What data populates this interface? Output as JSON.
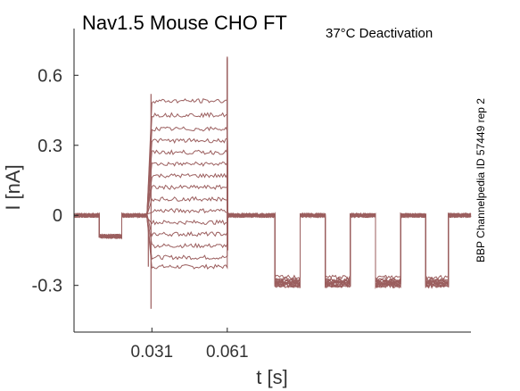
{
  "title": "Nav1.5  Mouse  CHO FT",
  "subtitle": "37°C  Deactivation",
  "side_note": "BBP Channelpedia ID 57449 rep 2",
  "chart_data": {
    "type": "line",
    "xlabel": "t [s]",
    "ylabel": "I [nA]",
    "x_ticks": [
      0.031,
      0.061
    ],
    "x_tick_labels": [
      "0.031",
      "0.061"
    ],
    "y_ticks": [
      -0.3,
      0,
      0.3,
      0.6
    ],
    "y_tick_labels": [
      "-0.3",
      "0",
      "0.3",
      "0.6"
    ],
    "xlim": [
      0.0,
      0.158
    ],
    "ylim": [
      -0.5,
      0.8
    ],
    "grid": false,
    "legend": "none",
    "trace_color": "#9b5e5e",
    "segments": [
      {
        "t_start": 0.0,
        "t_end": 0.01,
        "level": "baseline",
        "value": 0.0
      },
      {
        "t_start": 0.01,
        "t_end": 0.019,
        "level": "prepulse",
        "value": -0.09
      },
      {
        "t_start": 0.019,
        "t_end": 0.029,
        "level": "baseline",
        "value": 0.0
      },
      {
        "t_start": 0.031,
        "t_end": 0.061,
        "level": "test_step",
        "values_by_sweep": [
          -0.22,
          -0.18,
          -0.13,
          -0.08,
          -0.03,
          0.02,
          0.07,
          0.12,
          0.17,
          0.22,
          0.27,
          0.32,
          0.37,
          0.43,
          0.49
        ]
      },
      {
        "t_start": 0.061,
        "t_end": 0.08,
        "level": "baseline",
        "value": 0.0
      },
      {
        "t_start": 0.08,
        "t_end": 0.09,
        "level": "pulse",
        "value": -0.28
      },
      {
        "t_start": 0.09,
        "t_end": 0.1,
        "level": "baseline",
        "value": 0.0
      },
      {
        "t_start": 0.1,
        "t_end": 0.11,
        "level": "pulse",
        "value": -0.28
      },
      {
        "t_start": 0.11,
        "t_end": 0.12,
        "level": "baseline",
        "value": 0.0
      },
      {
        "t_start": 0.12,
        "t_end": 0.13,
        "level": "pulse",
        "value": -0.28
      },
      {
        "t_start": 0.13,
        "t_end": 0.14,
        "level": "baseline",
        "value": 0.0
      },
      {
        "t_start": 0.14,
        "t_end": 0.149,
        "level": "pulse",
        "value": -0.28
      },
      {
        "t_start": 0.149,
        "t_end": 0.158,
        "level": "baseline",
        "value": 0.0
      }
    ]
  }
}
